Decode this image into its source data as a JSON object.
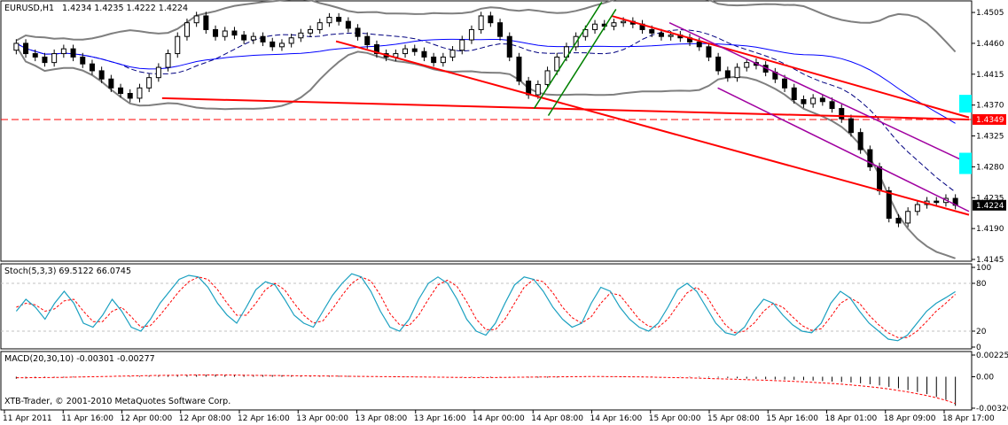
{
  "colors": {
    "background": "#ffffff",
    "frame": "#000000",
    "candle": "#000000",
    "bollinger": "#7f7f7f",
    "ma_fast": "#000080",
    "ma_slow": "#0000ff",
    "trendline": "#ff0000",
    "channel_up": "#008000",
    "channel_down": "#a000a0",
    "stoch_main": "#1aa0c0",
    "stoch_signal": "#ff0000",
    "macd_signal": "#ff0000",
    "marker": "#00ffff",
    "current_price_tag": "#000000",
    "alert_tag": "#ff0000"
  },
  "header": {
    "symbol": "EURUSD,H1",
    "ohlc": "1.4234 1.4235 1.4222 1.4224"
  },
  "footer": {
    "copyright": "XTB-Trader, © 2001-2010 MetaQuotes Software Corp."
  },
  "chart_data": [
    {
      "type": "candlestick",
      "title": "EURUSD,H1 1.4234 1.4235 1.4222 1.4224",
      "symbol": "EURUSD",
      "timeframe": "H1",
      "last": {
        "open": 1.4234,
        "high": 1.4235,
        "low": 1.4222,
        "close": 1.4224
      },
      "ylim": [
        1.4145,
        1.4518
      ],
      "ytick_labels": [
        "1.4505",
        "1.4460",
        "1.4415",
        "1.4370",
        "1.4325",
        "1.4280",
        "1.4235",
        "1.4190",
        "1.4145"
      ],
      "xtick_labels": [
        "11 Apr 2011",
        "11 Apr 16:00",
        "12 Apr 00:00",
        "12 Apr 08:00",
        "12 Apr 16:00",
        "13 Apr 00:00",
        "13 Apr 08:00",
        "13 Apr 16:00",
        "14 Apr 00:00",
        "14 Apr 08:00",
        "14 Apr 16:00",
        "15 Apr 00:00",
        "15 Apr 08:00",
        "15 Apr 16:00",
        "18 Apr 01:00",
        "18 Apr 09:00",
        "18 Apr 17:00"
      ],
      "price_tags": [
        {
          "label": "1.4349",
          "role": "alert"
        },
        {
          "label": "1.4224",
          "role": "current"
        }
      ],
      "horizontal_line": 1.4349,
      "ohlc_path": [
        [
          1.445,
          1.446
        ],
        [
          1.446,
          1.4445
        ],
        [
          1.4445,
          1.444
        ],
        [
          1.444,
          1.4432
        ],
        [
          1.4432,
          1.4445
        ],
        [
          1.4445,
          1.4452
        ],
        [
          1.4452,
          1.444
        ],
        [
          1.444,
          1.443
        ],
        [
          1.443,
          1.442
        ],
        [
          1.442,
          1.4408
        ],
        [
          1.4408,
          1.4395
        ],
        [
          1.4395,
          1.4387
        ],
        [
          1.4387,
          1.438
        ],
        [
          1.438,
          1.4395
        ],
        [
          1.4395,
          1.441
        ],
        [
          1.441,
          1.4425
        ],
        [
          1.4425,
          1.4445
        ],
        [
          1.4445,
          1.447
        ],
        [
          1.447,
          1.449
        ],
        [
          1.449,
          1.45
        ],
        [
          1.45,
          1.448
        ],
        [
          1.448,
          1.447
        ],
        [
          1.447,
          1.4478
        ],
        [
          1.4478,
          1.4472
        ],
        [
          1.4472,
          1.4465
        ],
        [
          1.4465,
          1.447
        ],
        [
          1.447,
          1.4462
        ],
        [
          1.4462,
          1.4455
        ],
        [
          1.4455,
          1.446
        ],
        [
          1.446,
          1.4468
        ],
        [
          1.4468,
          1.4475
        ],
        [
          1.4475,
          1.448
        ],
        [
          1.448,
          1.449
        ],
        [
          1.449,
          1.4498
        ],
        [
          1.4498,
          1.4492
        ],
        [
          1.4492,
          1.4482
        ],
        [
          1.4482,
          1.447
        ],
        [
          1.447,
          1.4458
        ],
        [
          1.4458,
          1.4445
        ],
        [
          1.4445,
          1.444
        ],
        [
          1.444,
          1.4445
        ],
        [
          1.4445,
          1.4452
        ],
        [
          1.4452,
          1.4448
        ],
        [
          1.4448,
          1.444
        ],
        [
          1.444,
          1.4432
        ],
        [
          1.4432,
          1.444
        ],
        [
          1.444,
          1.445
        ],
        [
          1.445,
          1.4465
        ],
        [
          1.4465,
          1.448
        ],
        [
          1.448,
          1.45
        ],
        [
          1.45,
          1.449
        ],
        [
          1.449,
          1.447
        ],
        [
          1.447,
          1.444
        ],
        [
          1.444,
          1.4405
        ],
        [
          1.4405,
          1.4385
        ],
        [
          1.4385,
          1.44
        ],
        [
          1.44,
          1.442
        ],
        [
          1.442,
          1.444
        ],
        [
          1.444,
          1.4455
        ],
        [
          1.4455,
          1.447
        ],
        [
          1.447,
          1.448
        ],
        [
          1.448,
          1.4488
        ],
        [
          1.4488,
          1.4485
        ],
        [
          1.4485,
          1.449
        ],
        [
          1.449,
          1.4492
        ],
        [
          1.4492,
          1.4488
        ],
        [
          1.4488,
          1.448
        ],
        [
          1.448,
          1.4475
        ],
        [
          1.4475,
          1.447
        ],
        [
          1.447,
          1.4472
        ],
        [
          1.4472,
          1.4468
        ],
        [
          1.4468,
          1.4462
        ],
        [
          1.4462,
          1.4455
        ],
        [
          1.4455,
          1.444
        ],
        [
          1.444,
          1.442
        ],
        [
          1.442,
          1.441
        ],
        [
          1.441,
          1.4425
        ],
        [
          1.4425,
          1.4432
        ],
        [
          1.4432,
          1.4428
        ],
        [
          1.4428,
          1.4418
        ],
        [
          1.4418,
          1.4408
        ],
        [
          1.4408,
          1.4395
        ],
        [
          1.4395,
          1.4378
        ],
        [
          1.4378,
          1.4372
        ],
        [
          1.4372,
          1.438
        ],
        [
          1.438,
          1.4375
        ],
        [
          1.4375,
          1.4365
        ],
        [
          1.4365,
          1.435
        ],
        [
          1.435,
          1.433
        ],
        [
          1.433,
          1.4305
        ],
        [
          1.4305,
          1.428
        ],
        [
          1.428,
          1.4245
        ],
        [
          1.4245,
          1.4205
        ],
        [
          1.4205,
          1.4198
        ],
        [
          1.4198,
          1.4215
        ],
        [
          1.4215,
          1.4225
        ],
        [
          1.4225,
          1.423
        ],
        [
          1.423,
          1.4228
        ],
        [
          1.4228,
          1.4234
        ],
        [
          1.4234,
          1.4224
        ]
      ],
      "trendlines": [
        {
          "color": "red",
          "from": [
            0.345,
            1.4463
          ],
          "to": [
            1.0,
            1.421
          ]
        },
        {
          "color": "red",
          "from": [
            0.165,
            1.438
          ],
          "to": [
            1.0,
            1.4349
          ]
        },
        {
          "color": "red",
          "from": [
            0.63,
            1.45
          ],
          "to": [
            1.0,
            1.4352
          ]
        },
        {
          "color": "green",
          "from": [
            0.55,
            1.4365
          ],
          "to": [
            0.62,
            1.452
          ]
        },
        {
          "color": "purple",
          "from": [
            0.69,
            1.449
          ],
          "to": [
            1.0,
            1.4285
          ]
        },
        {
          "color": "purple",
          "from": [
            0.74,
            1.4395
          ],
          "to": [
            1.0,
            1.4215
          ]
        }
      ]
    },
    {
      "type": "line",
      "title": "Stoch(5,3,3) 69.5122 66.0745",
      "indicator": "Stoch",
      "params": [
        5,
        3,
        3
      ],
      "main_value": 69.5122,
      "signal_value": 66.0745,
      "ylim": [
        0,
        100
      ],
      "ytick_labels": [
        "100",
        "80",
        "20",
        "0"
      ],
      "levels": [
        20,
        80
      ],
      "main": [
        45,
        60,
        50,
        35,
        55,
        70,
        55,
        30,
        25,
        40,
        60,
        45,
        25,
        20,
        35,
        55,
        70,
        85,
        90,
        88,
        75,
        55,
        40,
        30,
        50,
        72,
        82,
        78,
        60,
        40,
        30,
        25,
        45,
        65,
        80,
        92,
        88,
        70,
        45,
        25,
        20,
        35,
        60,
        80,
        88,
        80,
        60,
        35,
        20,
        15,
        30,
        55,
        78,
        88,
        85,
        70,
        50,
        35,
        25,
        30,
        55,
        75,
        70,
        50,
        35,
        25,
        20,
        30,
        50,
        72,
        80,
        70,
        50,
        30,
        18,
        15,
        25,
        45,
        60,
        55,
        40,
        28,
        20,
        18,
        30,
        55,
        70,
        62,
        45,
        30,
        20,
        10,
        8,
        15,
        30,
        45,
        55,
        62,
        69.5
      ],
      "signal": [
        50,
        55,
        53,
        45,
        48,
        58,
        60,
        45,
        32,
        32,
        45,
        50,
        38,
        25,
        27,
        40,
        55,
        70,
        82,
        88,
        85,
        72,
        55,
        40,
        40,
        55,
        72,
        80,
        72,
        55,
        40,
        30,
        33,
        48,
        65,
        80,
        88,
        83,
        65,
        42,
        28,
        27,
        40,
        60,
        78,
        84,
        76,
        57,
        35,
        22,
        22,
        35,
        55,
        75,
        85,
        82,
        68,
        50,
        37,
        30,
        38,
        55,
        68,
        65,
        50,
        35,
        26,
        25,
        35,
        52,
        68,
        75,
        65,
        45,
        28,
        18,
        20,
        30,
        45,
        55,
        50,
        38,
        27,
        21,
        23,
        38,
        55,
        62,
        55,
        40,
        28,
        18,
        12,
        12,
        20,
        32,
        45,
        55,
        66.1
      ]
    },
    {
      "type": "bar",
      "title": "MACD(20,30,10) -0.00301 -0.00277",
      "indicator": "MACD",
      "params": [
        20,
        30,
        10
      ],
      "main_value": -0.00301,
      "signal_value": -0.00277,
      "ylim": [
        -0.00326,
        0.00225
      ],
      "ytick_labels": [
        "0.00225",
        "0.00",
        "-0.00326"
      ],
      "histogram": [
        -0.0002,
        -0.00018,
        -0.00015,
        -0.00012,
        -0.0001,
        -8e-05,
        -6e-05,
        -4e-05,
        -2e-05,
        0.0,
        2e-05,
        4e-05,
        6e-05,
        8e-05,
        0.0001,
        0.00012,
        0.00014,
        0.00016,
        0.00018,
        0.0002,
        0.00021,
        0.00022,
        0.00022,
        0.00021,
        0.0002,
        0.00019,
        0.00018,
        0.00017,
        0.00016,
        0.00015,
        0.00014,
        0.00013,
        0.00012,
        0.00011,
        0.0001,
        9e-05,
        8e-05,
        7e-05,
        6e-05,
        5e-05,
        4e-05,
        3e-05,
        2e-05,
        1e-05,
        0.0,
        -1e-05,
        -2e-05,
        -3e-05,
        -4e-05,
        -5e-05,
        -6e-05,
        -7e-05,
        -8e-05,
        -9e-05,
        -0.0001,
        -0.0001,
        -9e-05,
        -8e-05,
        -6e-05,
        -4e-05,
        -2e-05,
        0.0,
        2e-05,
        3e-05,
        4e-05,
        4e-05,
        3e-05,
        2e-05,
        1e-05,
        0.0,
        -2e-05,
        -4e-05,
        -6e-05,
        -8e-05,
        -0.0001,
        -0.00013,
        -0.00016,
        -0.00019,
        -0.00022,
        -0.00025,
        -0.00028,
        -0.0003,
        -0.00032,
        -0.00035,
        -0.0004,
        -0.00045,
        -0.0005,
        -0.00055,
        -0.0006,
        -0.00068,
        -0.00078,
        -0.0009,
        -0.00105,
        -0.0012,
        -0.00138,
        -0.00158,
        -0.0018,
        -0.0021,
        -0.0024,
        -0.00301
      ],
      "signal": [
        -0.0001,
        -0.0001,
        -9e-05,
        -8e-05,
        -7e-05,
        -6e-05,
        -4e-05,
        -2e-05,
        0.0,
        2e-05,
        4e-05,
        6e-05,
        8e-05,
        0.0001,
        0.00012,
        0.00014,
        0.00015,
        0.00016,
        0.00017,
        0.00018,
        0.00018,
        0.00018,
        0.00018,
        0.00017,
        0.00016,
        0.00015,
        0.00014,
        0.00013,
        0.00012,
        0.00011,
        0.0001,
        9e-05,
        8e-05,
        7e-05,
        6e-05,
        5e-05,
        4e-05,
        3e-05,
        2e-05,
        1e-05,
        0.0,
        -1e-05,
        -2e-05,
        -3e-05,
        -4e-05,
        -5e-05,
        -6e-05,
        -7e-05,
        -8e-05,
        -8e-05,
        -8e-05,
        -7e-05,
        -6e-05,
        -5e-05,
        -4e-05,
        -3e-05,
        -2e-05,
        -1e-05,
        0.0,
        1e-05,
        2e-05,
        2e-05,
        2e-05,
        1e-05,
        0.0,
        -1e-05,
        -2e-05,
        -4e-05,
        -6e-05,
        -8e-05,
        -0.0001,
        -0.00012,
        -0.00015,
        -0.00018,
        -0.00021,
        -0.00024,
        -0.00027,
        -0.0003,
        -0.00033,
        -0.00036,
        -0.0004,
        -0.00044,
        -0.00048,
        -0.00053,
        -0.00058,
        -0.00064,
        -0.0007,
        -0.00077,
        -0.00085,
        -0.00094,
        -0.00104,
        -0.00115,
        -0.00128,
        -0.00142,
        -0.00158,
        -0.00176,
        -0.00196,
        -0.00218,
        -0.00245,
        -0.00277
      ]
    }
  ]
}
